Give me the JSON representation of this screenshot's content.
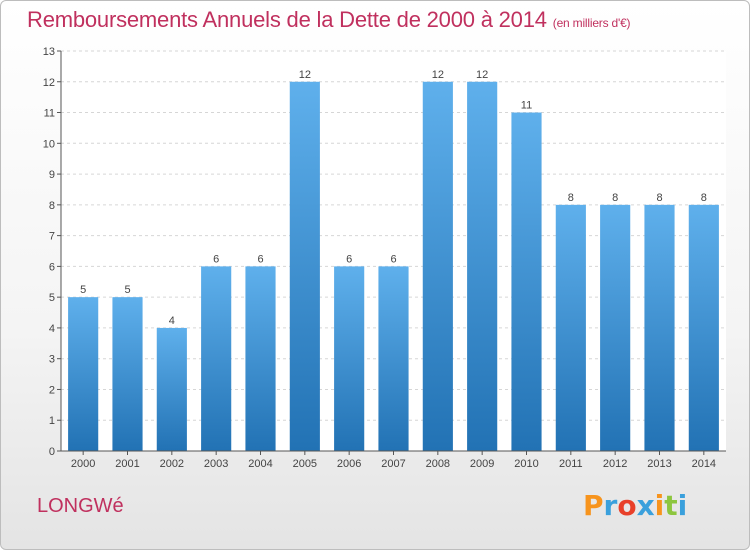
{
  "title": "Remboursements Annuels de la Dette de 2000 à 2014",
  "subtitle": "(en milliers d'€)",
  "commune": "LONGWé",
  "logo": {
    "text": "Proxiti",
    "colors": [
      "#f7941d",
      "#3aa0dc",
      "#e8402a",
      "#3aa0dc",
      "#f7941d",
      "#8dc63f",
      "#3aa0dc"
    ]
  },
  "colors": {
    "bar_top": "#5fb0ec",
    "bar_bottom": "#2272b4",
    "title": "#c0305e"
  },
  "chart_data": {
    "type": "bar",
    "categories": [
      "2000",
      "2001",
      "2002",
      "2003",
      "2004",
      "2005",
      "2006",
      "2007",
      "2008",
      "2009",
      "2010",
      "2011",
      "2012",
      "2013",
      "2014"
    ],
    "values": [
      5,
      5,
      4,
      6,
      6,
      12,
      6,
      6,
      12,
      12,
      11,
      8,
      8,
      8,
      8
    ],
    "data_labels": [
      "5",
      "5",
      "4",
      "6",
      "6",
      "12",
      "6",
      "6",
      "12",
      "12",
      "11",
      "8",
      "8",
      "8",
      "8"
    ],
    "yticks": [
      0,
      1,
      2,
      3,
      4,
      5,
      6,
      7,
      8,
      9,
      10,
      11,
      12,
      13
    ],
    "ylim": [
      0,
      13
    ],
    "grid": true,
    "title": "Remboursements Annuels de la Dette de 2000 à 2014",
    "xlabel": "",
    "ylabel": ""
  }
}
